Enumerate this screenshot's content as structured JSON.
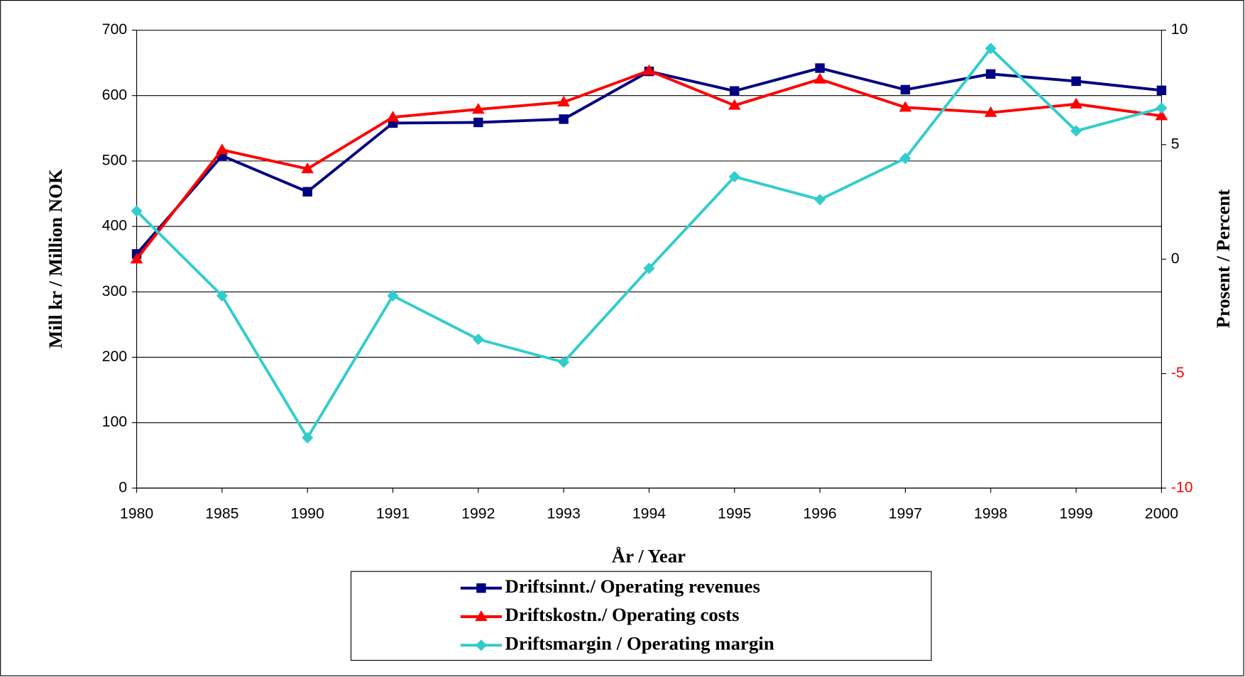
{
  "chart_data": {
    "type": "line",
    "x_label": "År / Year",
    "y_label": "Mill kr / Million NOK",
    "y2_label": "Prosent / Percent",
    "categories": [
      "1980",
      "1985",
      "1990",
      "1991",
      "1992",
      "1993",
      "1994",
      "1995",
      "1996",
      "1997",
      "1998",
      "1999",
      "2000"
    ],
    "ylim": [
      0,
      700
    ],
    "yticks": [
      0,
      100,
      200,
      300,
      400,
      500,
      600,
      700
    ],
    "y2lim": [
      -10,
      10
    ],
    "y2ticks": [
      -10,
      -5,
      0,
      5,
      10
    ],
    "negative_tick_color": "#ff0000",
    "grid": true,
    "series": [
      {
        "name": "Driftsinnt./ Operating revenues",
        "color": "#000080",
        "marker": "square",
        "values": [
          358,
          508,
          453,
          558,
          559,
          564,
          637,
          607,
          642,
          609,
          633,
          622,
          608
        ]
      },
      {
        "name": "Driftskostn./ Operating costs",
        "color": "#ff0000",
        "marker": "triangle",
        "values": [
          350,
          517,
          488,
          567,
          579,
          590,
          638,
          585,
          625,
          582,
          574,
          587,
          569
        ]
      },
      {
        "name": "Driftsmargin / Operating margin",
        "color": "#33cccc",
        "marker": "diamond",
        "axis": "y2",
        "values": [
          2.1,
          -1.6,
          -7.8,
          -1.6,
          -3.5,
          -4.5,
          -0.4,
          3.6,
          2.6,
          4.4,
          9.2,
          5.6,
          6.6
        ]
      }
    ]
  }
}
